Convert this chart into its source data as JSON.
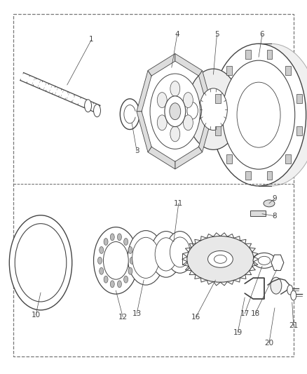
{
  "background_color": "#ffffff",
  "fig_width": 4.39,
  "fig_height": 5.33,
  "dpi": 100,
  "gray": "#444444",
  "lgray": "#888888",
  "label_fontsize": 7.5
}
